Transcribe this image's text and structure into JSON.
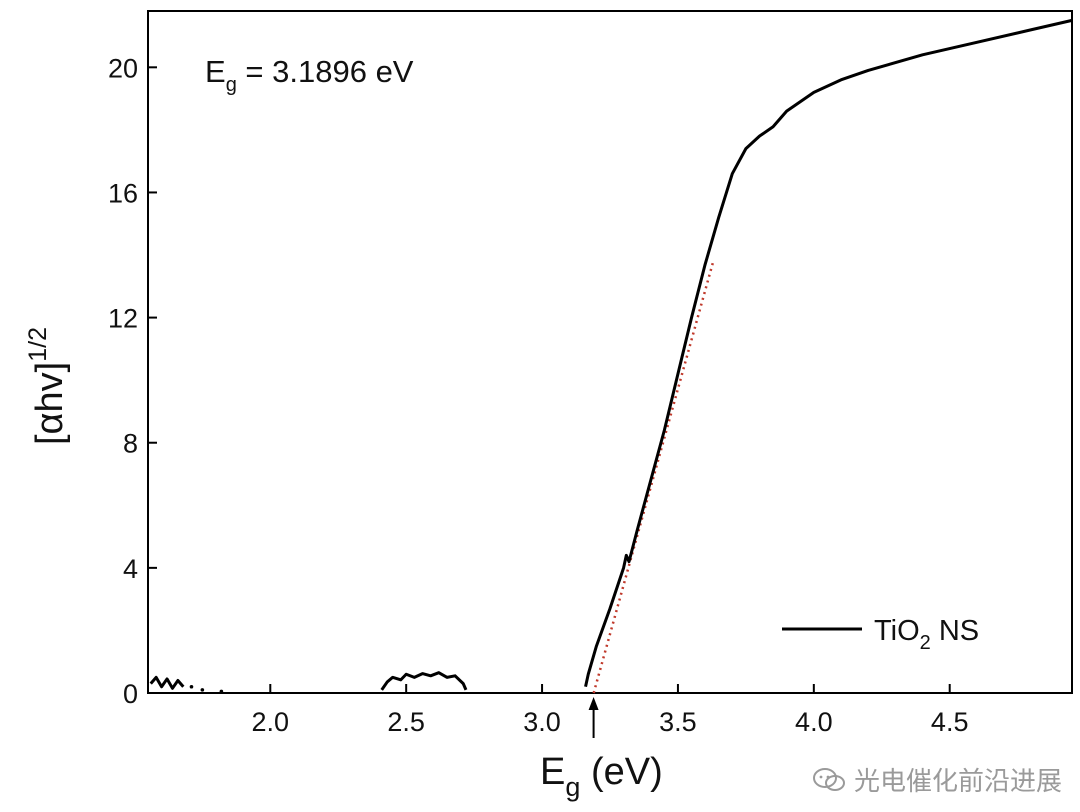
{
  "chart_data": {
    "type": "line",
    "title": "",
    "xlabel": {
      "main": "E",
      "sub": "g",
      "rest": " (eV)"
    },
    "ylabel": {
      "main": "[αhv]",
      "sup": "1/2"
    },
    "xlim": [
      1.55,
      4.95
    ],
    "ylim": [
      0,
      21.8
    ],
    "xticks": [
      2.0,
      2.5,
      3.0,
      3.5,
      4.0,
      4.5
    ],
    "xtick_labels": [
      "2.0",
      "2.5",
      "3.0",
      "3.5",
      "4.0",
      "4.5"
    ],
    "yticks": [
      0,
      4,
      8,
      12,
      16,
      20
    ],
    "ytick_labels": [
      "0",
      "4",
      "8",
      "12",
      "16",
      "20"
    ],
    "grid": false,
    "legend_position": "bottom-right",
    "series": [
      {
        "name": "TiO2 NS",
        "legend_label": {
          "main": "TiO",
          "sub": "2",
          "rest": " NS"
        },
        "color": "#000000",
        "style": "solid",
        "segments": [
          [
            [
              1.56,
              0.3
            ],
            [
              1.58,
              0.5
            ],
            [
              1.6,
              0.2
            ],
            [
              1.62,
              0.45
            ],
            [
              1.64,
              0.15
            ],
            [
              1.66,
              0.4
            ],
            [
              1.68,
              0.2
            ]
          ],
          [
            [
              2.41,
              0.1
            ],
            [
              2.43,
              0.35
            ],
            [
              2.45,
              0.5
            ],
            [
              2.48,
              0.42
            ],
            [
              2.5,
              0.6
            ],
            [
              2.53,
              0.5
            ],
            [
              2.56,
              0.62
            ],
            [
              2.59,
              0.55
            ],
            [
              2.62,
              0.65
            ],
            [
              2.65,
              0.5
            ],
            [
              2.68,
              0.55
            ],
            [
              2.71,
              0.3
            ],
            [
              2.72,
              0.1
            ]
          ],
          [
            [
              3.16,
              0.2
            ],
            [
              3.17,
              0.6
            ],
            [
              3.2,
              1.5
            ],
            [
              3.25,
              2.7
            ],
            [
              3.3,
              4.0
            ],
            [
              3.31,
              4.4
            ],
            [
              3.32,
              4.2
            ],
            [
              3.35,
              5.2
            ],
            [
              3.4,
              6.8
            ],
            [
              3.45,
              8.4
            ],
            [
              3.5,
              10.2
            ],
            [
              3.55,
              12.0
            ],
            [
              3.6,
              13.7
            ],
            [
              3.65,
              15.2
            ],
            [
              3.7,
              16.6
            ],
            [
              3.75,
              17.4
            ],
            [
              3.8,
              17.8
            ],
            [
              3.85,
              18.1
            ],
            [
              3.9,
              18.6
            ],
            [
              4.0,
              19.2
            ],
            [
              4.1,
              19.6
            ],
            [
              4.2,
              19.9
            ],
            [
              4.4,
              20.4
            ],
            [
              4.6,
              20.8
            ],
            [
              4.8,
              21.2
            ],
            [
              4.95,
              21.5
            ]
          ]
        ],
        "dots": [
          [
            1.71,
            0.2
          ],
          [
            1.75,
            0.1
          ],
          [
            1.82,
            0.05
          ]
        ]
      },
      {
        "name": "",
        "color": "#c0392b",
        "style": "dotted",
        "points": [
          [
            3.19,
            0.0
          ],
          [
            3.63,
            13.8
          ]
        ]
      }
    ],
    "annotations": [
      {
        "type": "text",
        "main": "E",
        "sub": "g",
        "rest": " = 3.1896 eV"
      },
      {
        "type": "arrow",
        "x": 3.1896
      }
    ]
  },
  "watermark": {
    "text": "光电催化前沿进展",
    "icon": "wechat-icon"
  }
}
